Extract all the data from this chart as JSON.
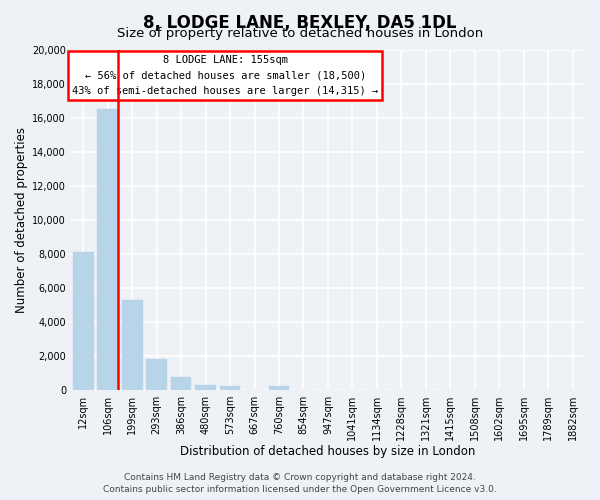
{
  "title": "8, LODGE LANE, BEXLEY, DA5 1DL",
  "subtitle": "Size of property relative to detached houses in London",
  "xlabel": "Distribution of detached houses by size in London",
  "ylabel": "Number of detached properties",
  "categories": [
    "12sqm",
    "106sqm",
    "199sqm",
    "293sqm",
    "386sqm",
    "480sqm",
    "573sqm",
    "667sqm",
    "760sqm",
    "854sqm",
    "947sqm",
    "1041sqm",
    "1134sqm",
    "1228sqm",
    "1321sqm",
    "1415sqm",
    "1508sqm",
    "1602sqm",
    "1695sqm",
    "1789sqm",
    "1882sqm"
  ],
  "values": [
    8100,
    16500,
    5300,
    1850,
    750,
    300,
    230,
    0,
    230,
    0,
    0,
    0,
    0,
    0,
    0,
    0,
    0,
    0,
    0,
    0,
    0
  ],
  "bar_color": "#b8d4e8",
  "bar_edge_color": "#b8d4e8",
  "vline_color": "red",
  "vline_x_index": 1,
  "ylim": [
    0,
    20000
  ],
  "yticks": [
    0,
    2000,
    4000,
    6000,
    8000,
    10000,
    12000,
    14000,
    16000,
    18000,
    20000
  ],
  "annotation_title": "8 LODGE LANE: 155sqm",
  "annotation_line1": "← 56% of detached houses are smaller (18,500)",
  "annotation_line2": "43% of semi-detached houses are larger (14,315) →",
  "annotation_box_color": "white",
  "annotation_box_edge_color": "red",
  "footer_line1": "Contains HM Land Registry data © Crown copyright and database right 2024.",
  "footer_line2": "Contains public sector information licensed under the Open Government Licence v3.0.",
  "background_color": "#eef2f7",
  "grid_color": "white",
  "title_fontsize": 12,
  "subtitle_fontsize": 9.5,
  "xlabel_fontsize": 8.5,
  "ylabel_fontsize": 8.5,
  "tick_fontsize": 7,
  "footer_fontsize": 6.5,
  "annotation_fontsize": 7.5
}
